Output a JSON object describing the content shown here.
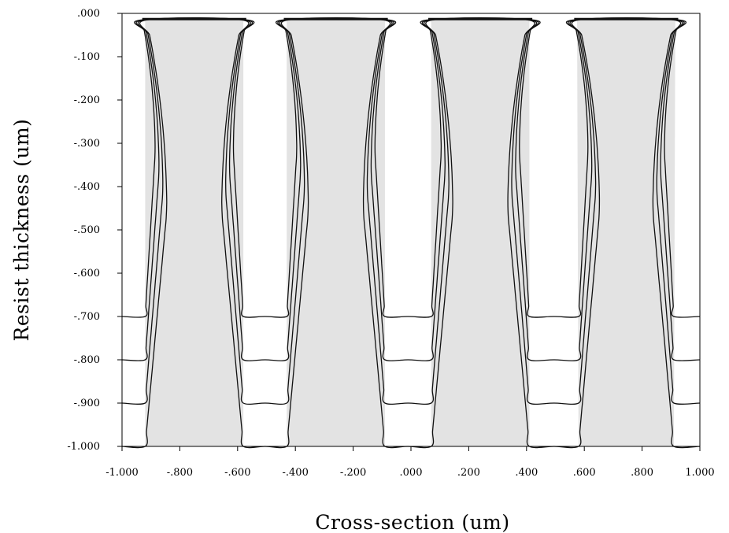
{
  "chart_data": {
    "type": "contour",
    "xlabel": "Cross-section (um)",
    "ylabel": "Resist thickness (um)",
    "xlim": [
      -1.0,
      1.0
    ],
    "ylim": [
      -1.0,
      0.0
    ],
    "x_ticks": [
      "-1.000",
      "-.800",
      "-.600",
      "-.400",
      "-.200",
      ".000",
      ".200",
      ".400",
      ".600",
      ".800",
      "1.000"
    ],
    "y_ticks": [
      ".000",
      "-.100",
      "-.200",
      "-.300",
      "-.400",
      "-.500",
      "-.600",
      "-.700",
      "-.800",
      "-.900",
      "-1.000"
    ],
    "resist_lines": [
      {
        "left": -0.92,
        "right": -0.58
      },
      {
        "left": -0.43,
        "right": -0.09
      },
      {
        "left": 0.07,
        "right": 0.41
      },
      {
        "left": 0.58,
        "right": 0.91
      }
    ],
    "line_top_width": 0.36,
    "contour_depths": [
      -0.7,
      -0.8,
      -0.9,
      -1.0
    ],
    "grid": false
  }
}
